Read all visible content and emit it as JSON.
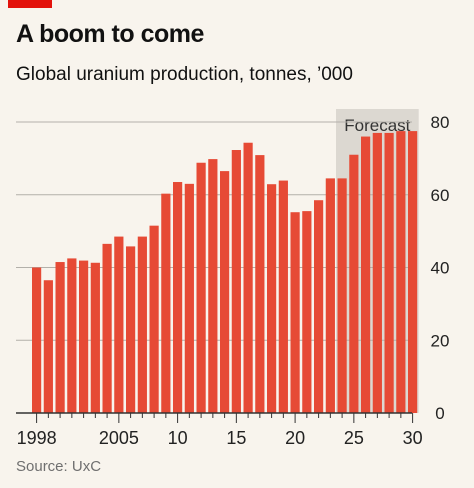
{
  "header": {
    "title": "A boom to come",
    "subtitle": "Global uranium production, tonnes, ’000"
  },
  "footer": {
    "source": "Source: UxC"
  },
  "colors": {
    "bar": "#e64a35",
    "forecast_shade": "#dcd8d1",
    "grid": "#b3b0aa",
    "axis": "#333333",
    "brand_red": "#e3120b"
  },
  "chart_data": {
    "type": "bar",
    "title": "A boom to come",
    "subtitle": "Global uranium production, tonnes, ’000",
    "xlabel": "",
    "ylabel": "",
    "x": [
      1998,
      1999,
      2000,
      2001,
      2002,
      2003,
      2004,
      2005,
      2006,
      2007,
      2008,
      2009,
      2010,
      2011,
      2012,
      2013,
      2014,
      2015,
      2016,
      2017,
      2018,
      2019,
      2020,
      2021,
      2022,
      2023,
      2024,
      2025,
      2026,
      2027,
      2028,
      2029,
      2030
    ],
    "values": [
      40.0,
      36.5,
      41.5,
      42.5,
      41.9,
      41.3,
      46.5,
      48.5,
      45.8,
      48.5,
      51.5,
      60.3,
      63.5,
      63.0,
      68.8,
      69.8,
      66.5,
      72.3,
      74.3,
      70.9,
      62.9,
      63.9,
      55.2,
      55.5,
      58.5,
      64.5,
      64.5,
      71.0,
      76.0,
      77.0,
      77.0,
      77.5,
      77.5
    ],
    "ylim": [
      0,
      80
    ],
    "yticks": [
      0,
      20,
      40,
      60,
      80
    ],
    "xtick_labels": [
      {
        "year": 1998,
        "label": "1998"
      },
      {
        "year": 2005,
        "label": "2005"
      },
      {
        "year": 2010,
        "label": "10"
      },
      {
        "year": 2015,
        "label": "15"
      },
      {
        "year": 2020,
        "label": "20"
      },
      {
        "year": 2025,
        "label": "25"
      },
      {
        "year": 2030,
        "label": "30"
      }
    ],
    "forecast": {
      "label": "Forecast",
      "from": 2024,
      "to": 2030
    },
    "grid": true,
    "y_axis_side": "right"
  }
}
